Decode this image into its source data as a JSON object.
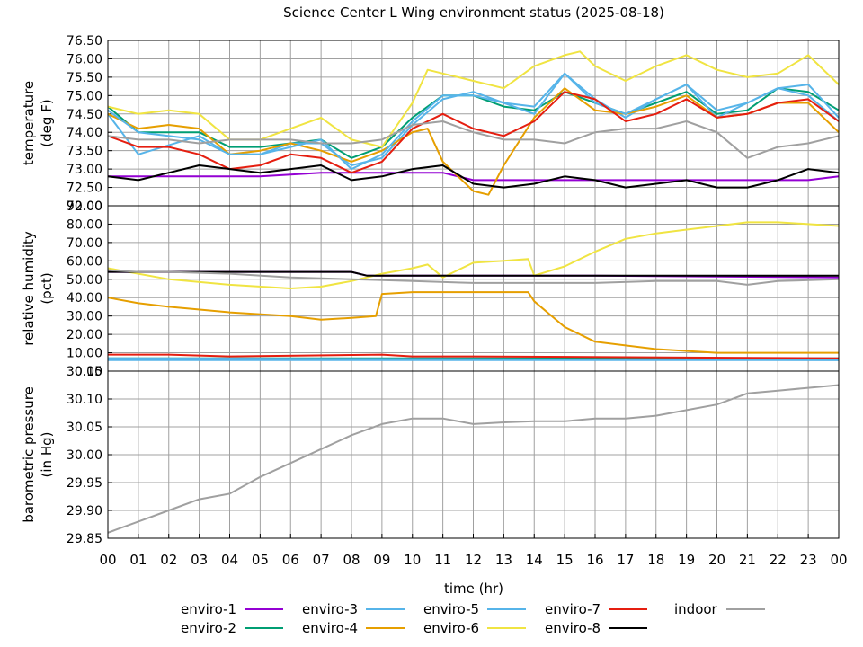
{
  "title": "Science Center L Wing environment status (2025-08-18)",
  "legend_position": "bottom",
  "legend": [
    {
      "name": "enviro-1",
      "color": "#9400d3"
    },
    {
      "name": "enviro-2",
      "color": "#009e73"
    },
    {
      "name": "enviro-3",
      "color": "#56b4e9"
    },
    {
      "name": "enviro-4",
      "color": "#e69f00"
    },
    {
      "name": "enviro-5",
      "color": "#56b4e9"
    },
    {
      "name": "enviro-6",
      "color": "#f0e442"
    },
    {
      "name": "enviro-7",
      "color": "#e51e10"
    },
    {
      "name": "enviro-8",
      "color": "#000000"
    },
    {
      "name": "indoor",
      "color": "#a0a0a0"
    }
  ],
  "chart_data": [
    {
      "type": "line",
      "ylabel": [
        "temperature",
        "(deg F)"
      ],
      "ylim": [
        72.0,
        76.5
      ],
      "yticks": [
        "72.00",
        "72.50",
        "73.00",
        "73.50",
        "74.00",
        "74.50",
        "75.00",
        "75.50",
        "76.00",
        "76.50"
      ],
      "grid": true,
      "series": [
        {
          "name": "enviro-1",
          "color": "#9400d3",
          "x": [
            0,
            3,
            5,
            7,
            9,
            11,
            12,
            14,
            17,
            18,
            20,
            23,
            24
          ],
          "y": [
            72.8,
            72.8,
            72.8,
            72.9,
            72.9,
            72.9,
            72.7,
            72.7,
            72.7,
            72.7,
            72.7,
            72.7,
            72.8
          ]
        },
        {
          "name": "enviro-2",
          "color": "#009e73",
          "x": [
            0,
            1,
            3,
            4,
            5,
            6,
            7,
            8,
            9,
            10,
            11,
            12,
            13,
            14,
            15,
            16,
            17,
            18,
            19,
            20,
            21,
            22,
            23,
            24
          ],
          "y": [
            74.7,
            74.0,
            74.0,
            73.6,
            73.6,
            73.7,
            73.8,
            73.3,
            73.6,
            74.4,
            75.0,
            75.0,
            74.7,
            74.6,
            75.1,
            74.8,
            74.5,
            74.8,
            75.1,
            74.5,
            74.6,
            75.2,
            75.1,
            74.6
          ]
        },
        {
          "name": "enviro-3",
          "color": "#56b4e9",
          "x": [
            0,
            1,
            3,
            4,
            5,
            6,
            7,
            8,
            9,
            10,
            11,
            12,
            13,
            14,
            15,
            16,
            17,
            18,
            19,
            20,
            21,
            22,
            23,
            24
          ],
          "y": [
            74.5,
            73.4,
            73.9,
            73.4,
            73.4,
            73.7,
            73.7,
            73.1,
            73.3,
            74.2,
            74.9,
            75.1,
            74.8,
            74.5,
            75.6,
            74.9,
            74.4,
            74.9,
            75.3,
            74.4,
            74.8,
            75.2,
            75.0,
            74.3
          ]
        },
        {
          "name": "enviro-4",
          "color": "#e69f00",
          "x": [
            0,
            1,
            2,
            3,
            4,
            5,
            6,
            7,
            8,
            9,
            10,
            10.5,
            11,
            12,
            12.5,
            13,
            14,
            15,
            16,
            17,
            18,
            19,
            20,
            21,
            22,
            23,
            24
          ],
          "y": [
            74.5,
            74.1,
            74.2,
            74.1,
            73.4,
            73.5,
            73.7,
            73.5,
            73.2,
            73.5,
            74.0,
            74.1,
            73.2,
            72.4,
            72.3,
            73.1,
            74.4,
            75.2,
            74.6,
            74.5,
            74.7,
            75.0,
            74.4,
            74.5,
            74.8,
            74.8,
            74.0
          ]
        },
        {
          "name": "enviro-5",
          "color": "#56b4e9",
          "x": [
            0,
            1,
            3,
            4,
            5,
            6,
            7,
            8,
            9,
            10,
            11,
            12,
            13,
            14,
            15,
            16,
            17,
            18,
            19,
            20,
            21,
            22,
            23,
            24
          ],
          "y": [
            74.6,
            74.0,
            73.8,
            73.4,
            73.4,
            73.6,
            73.8,
            73.0,
            73.4,
            74.3,
            75.0,
            75.0,
            74.8,
            74.7,
            75.6,
            74.8,
            74.5,
            74.9,
            75.3,
            74.6,
            74.8,
            75.2,
            75.3,
            74.4
          ]
        },
        {
          "name": "enviro-6",
          "color": "#f0e442",
          "x": [
            0,
            1,
            2,
            3,
            4,
            5,
            6,
            7,
            8,
            9,
            10,
            10.5,
            11,
            12,
            13,
            14,
            15,
            15.5,
            16,
            17,
            18,
            19,
            20,
            21,
            22,
            23,
            24
          ],
          "y": [
            74.7,
            74.5,
            74.6,
            74.5,
            73.8,
            73.8,
            74.1,
            74.4,
            73.8,
            73.6,
            74.8,
            75.7,
            75.6,
            75.4,
            75.2,
            75.8,
            76.1,
            76.2,
            75.8,
            75.4,
            75.8,
            76.1,
            75.7,
            75.5,
            75.6,
            76.1,
            75.3
          ]
        },
        {
          "name": "enviro-7",
          "color": "#e51e10",
          "x": [
            0,
            1,
            2,
            3,
            4,
            5,
            6,
            7,
            8,
            9,
            10,
            11,
            12,
            13,
            14,
            15,
            16,
            17,
            18,
            19,
            20,
            21,
            22,
            23,
            24
          ],
          "y": [
            73.9,
            73.6,
            73.6,
            73.4,
            73.0,
            73.1,
            73.4,
            73.3,
            72.9,
            73.2,
            74.1,
            74.5,
            74.1,
            73.9,
            74.3,
            75.1,
            74.9,
            74.3,
            74.5,
            74.9,
            74.4,
            74.5,
            74.8,
            74.9,
            74.3
          ]
        },
        {
          "name": "enviro-8",
          "color": "#000000",
          "x": [
            0,
            1,
            2,
            3,
            4,
            5,
            6,
            7,
            8,
            9,
            10,
            11,
            12,
            13,
            14,
            15,
            16,
            17,
            18,
            19,
            20,
            21,
            22,
            23,
            24
          ],
          "y": [
            72.8,
            72.7,
            72.9,
            73.1,
            73.0,
            72.9,
            73.0,
            73.1,
            72.7,
            72.8,
            73.0,
            73.1,
            72.6,
            72.5,
            72.6,
            72.8,
            72.7,
            72.5,
            72.6,
            72.7,
            72.5,
            72.5,
            72.7,
            73.0,
            72.9
          ]
        },
        {
          "name": "indoor",
          "color": "#a0a0a0",
          "x": [
            0,
            1,
            2,
            3,
            4,
            5,
            6,
            7,
            8,
            9,
            10,
            11,
            12,
            13,
            14,
            15,
            16,
            17,
            18,
            19,
            20,
            21,
            22,
            23,
            24
          ],
          "y": [
            73.9,
            73.8,
            73.8,
            73.7,
            73.8,
            73.8,
            73.8,
            73.7,
            73.7,
            73.8,
            74.2,
            74.3,
            74.0,
            73.8,
            73.8,
            73.7,
            74.0,
            74.1,
            74.1,
            74.3,
            74.0,
            73.3,
            73.6,
            73.7,
            73.9
          ]
        }
      ]
    },
    {
      "type": "line",
      "ylabel": [
        "relative humidity",
        "(pct)"
      ],
      "ylim": [
        0,
        90
      ],
      "yticks": [
        "0.00",
        "10.00",
        "20.00",
        "30.00",
        "40.00",
        "50.00",
        "60.00",
        "70.00",
        "80.00",
        "90.00"
      ],
      "grid": true,
      "series": [
        {
          "name": "enviro-1",
          "color": "#9400d3",
          "x": [
            0,
            8,
            8.5,
            16,
            24
          ],
          "y": [
            54,
            54,
            52,
            52,
            51
          ]
        },
        {
          "name": "enviro-2",
          "color": "#009e73",
          "x": [
            0,
            24
          ],
          "y": [
            7,
            7
          ]
        },
        {
          "name": "enviro-3",
          "color": "#56b4e9",
          "x": [
            0,
            24
          ],
          "y": [
            6,
            6
          ]
        },
        {
          "name": "enviro-4",
          "color": "#e69f00",
          "x": [
            0,
            1,
            2,
            4,
            6,
            7,
            8,
            8.8,
            9,
            10,
            12,
            13.8,
            14,
            15,
            16,
            18,
            20,
            22,
            24
          ],
          "y": [
            40,
            37,
            35,
            32,
            30,
            28,
            29,
            30,
            42,
            43,
            43,
            43,
            38,
            24,
            16,
            12,
            10,
            10,
            10
          ]
        },
        {
          "name": "enviro-5",
          "color": "#56b4e9",
          "x": [
            0,
            24
          ],
          "y": [
            7,
            6
          ]
        },
        {
          "name": "enviro-6",
          "color": "#f0e442",
          "x": [
            0,
            1,
            2,
            4,
            6,
            7,
            8,
            9,
            10,
            10.5,
            11,
            12,
            13,
            13.8,
            14,
            15,
            16,
            17,
            18,
            20,
            21,
            22,
            23,
            24
          ],
          "y": [
            56,
            53,
            50,
            47,
            45,
            46,
            49,
            53,
            56,
            58,
            51,
            59,
            60,
            61,
            52,
            57,
            65,
            72,
            75,
            79,
            81,
            81,
            80,
            79
          ]
        },
        {
          "name": "enviro-7",
          "color": "#e51e10",
          "x": [
            0,
            2,
            4,
            9,
            10,
            12,
            24
          ],
          "y": [
            9,
            9,
            8,
            9,
            8,
            8,
            7
          ]
        },
        {
          "name": "enviro-8",
          "color": "#000000",
          "x": [
            0,
            8,
            8.5,
            12,
            24
          ],
          "y": [
            54,
            54,
            52,
            52,
            52
          ]
        },
        {
          "name": "indoor",
          "color": "#a0a0a0",
          "x": [
            0,
            1,
            2,
            4,
            6,
            8,
            10,
            12,
            14,
            16,
            18,
            20,
            21,
            22,
            24
          ],
          "y": [
            55,
            54,
            54,
            53,
            51,
            50,
            49,
            48,
            48,
            48,
            49,
            49,
            47,
            49,
            50
          ]
        }
      ]
    },
    {
      "type": "line",
      "ylabel": [
        "barometric pressure",
        "(in Hg)"
      ],
      "ylim": [
        29.85,
        30.15
      ],
      "yticks": [
        "29.85",
        "29.90",
        "29.95",
        "30.00",
        "30.05",
        "30.10",
        "30.15"
      ],
      "grid": true,
      "series": [
        {
          "name": "indoor",
          "color": "#a0a0a0",
          "x": [
            0,
            1,
            2,
            3,
            4,
            5,
            6,
            7,
            8,
            9,
            10,
            11,
            12,
            13,
            14,
            15,
            16,
            17,
            18,
            19,
            20,
            21,
            22,
            23,
            24
          ],
          "y": [
            29.86,
            29.88,
            29.9,
            29.92,
            29.93,
            29.96,
            29.985,
            30.01,
            30.035,
            30.055,
            30.065,
            30.065,
            30.055,
            30.058,
            30.06,
            30.06,
            30.065,
            30.065,
            30.07,
            30.08,
            30.09,
            30.11,
            30.115,
            30.12,
            30.125
          ]
        }
      ]
    }
  ],
  "xaxis": {
    "label": "time (hr)",
    "xlim": [
      0,
      24
    ],
    "ticks": [
      "00",
      "01",
      "02",
      "03",
      "04",
      "05",
      "06",
      "07",
      "08",
      "09",
      "10",
      "11",
      "12",
      "13",
      "14",
      "15",
      "16",
      "17",
      "18",
      "19",
      "20",
      "21",
      "22",
      "23",
      "00"
    ]
  }
}
